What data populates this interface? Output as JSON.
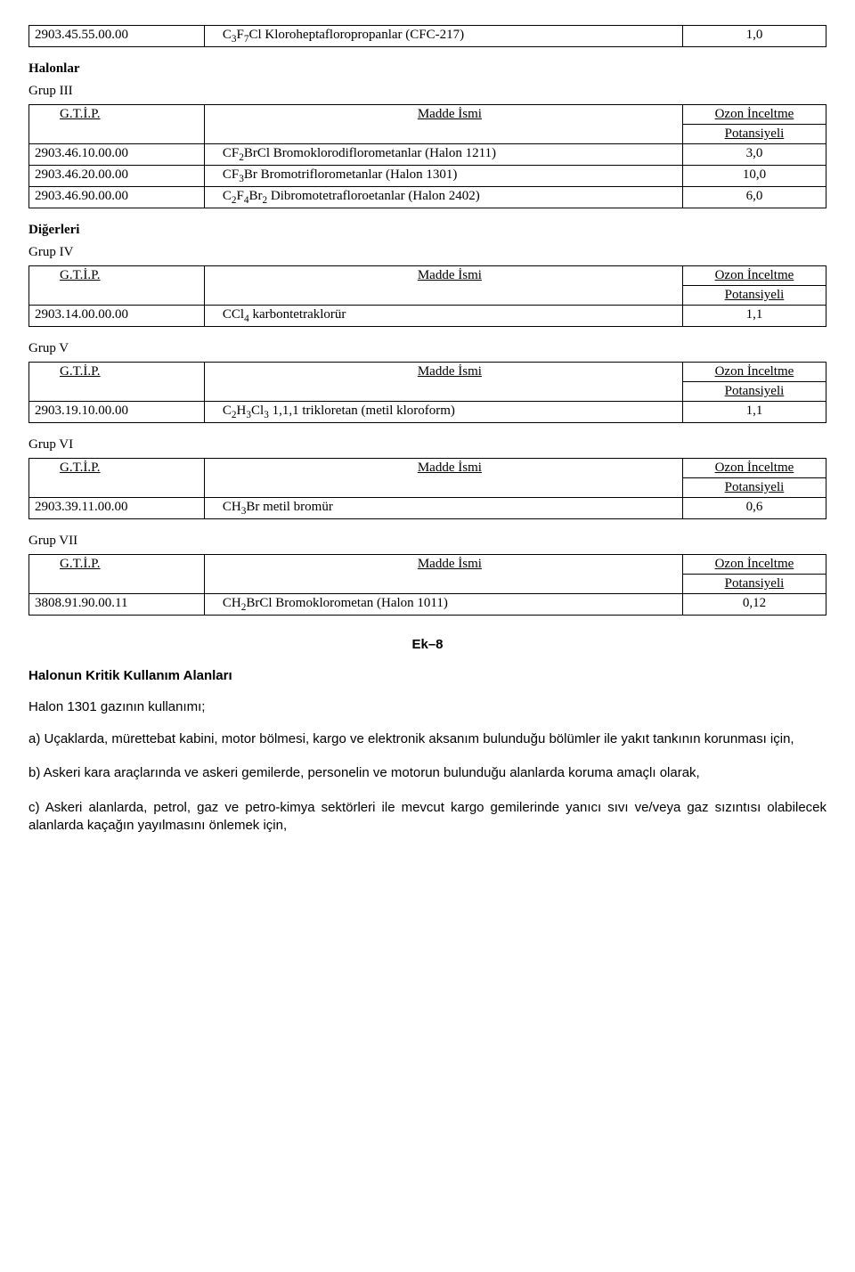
{
  "headers": {
    "code": "G.T.İ.P.",
    "name": "Madde İsmi",
    "oi": "Ozon İnceltme",
    "pot": "Potansiyeli"
  },
  "sections": {
    "halonlar": "Halonlar",
    "digerleri": "Diğerleri",
    "grup3": "Grup III",
    "grup4": "Grup IV",
    "grup5": "Grup V",
    "grup6": "Grup VI",
    "grup7": "Grup VII"
  },
  "t0": {
    "r0": {
      "code": "2903.45.55.00.00",
      "name": "C<sub>3</sub>F<sub>7</sub>Cl Kloroheptafloropropanlar (CFC-217)",
      "val": "1,0"
    }
  },
  "t3": {
    "r0": {
      "code": "2903.46.10.00.00",
      "name": "CF<sub>2</sub>BrCl Bromoklorodiflorometanlar (Halon 1211)",
      "val": "3,0"
    },
    "r1": {
      "code": "2903.46.20.00.00",
      "name": "CF<sub>3</sub>Br Bromotriflorometanlar (Halon 1301)",
      "val": "10,0"
    },
    "r2": {
      "code": "2903.46.90.00.00",
      "name": "C<sub>2</sub>F<sub>4</sub>Br<sub>2</sub> Dibromotetrafloroetanlar (Halon 2402)",
      "val": "6,0"
    }
  },
  "t4": {
    "r0": {
      "code": "2903.14.00.00.00",
      "name": "CCl<sub>4</sub> karbontetraklorür",
      "val": "1,1"
    }
  },
  "t5": {
    "r0": {
      "code": "2903.19.10.00.00",
      "name": "C<sub>2</sub>H<sub>3</sub>Cl<sub>3</sub> 1,1,1 trikloretan (metil kloroform)",
      "val": "1,1"
    }
  },
  "t6": {
    "r0": {
      "code": "2903.39.11.00.00",
      "name": "CH<sub>3</sub>Br metil bromür",
      "val": "0,6"
    }
  },
  "t7": {
    "r0": {
      "code": "3808.91.90.00.11",
      "name": "CH<sub>2</sub>BrCl Bromoklorometan (Halon 1011)",
      "val": "0,12"
    }
  },
  "ek": {
    "label": "Ek–8",
    "title": "Halonun Kritik Kullanım Alanları",
    "subtitle": "Halon 1301 gazının kullanımı;",
    "pA": "a) Uçaklarda, mürettebat kabini, motor bölmesi, kargo ve elektronik aksanım bulunduğu bölümler ile yakıt tankının korunması için,",
    "pB": "b) Askeri kara araçlarında ve askeri gemilerde, personelin ve motorun bulunduğu alanlarda koruma amaçlı olarak,",
    "pC": "c) Askeri alanlarda, petrol, gaz ve petro-kimya sektörleri ile mevcut kargo gemilerinde yanıcı sıvı ve/veya gaz sızıntısı olabilecek alanlarda kaçağın yayılmasını önlemek için,"
  }
}
